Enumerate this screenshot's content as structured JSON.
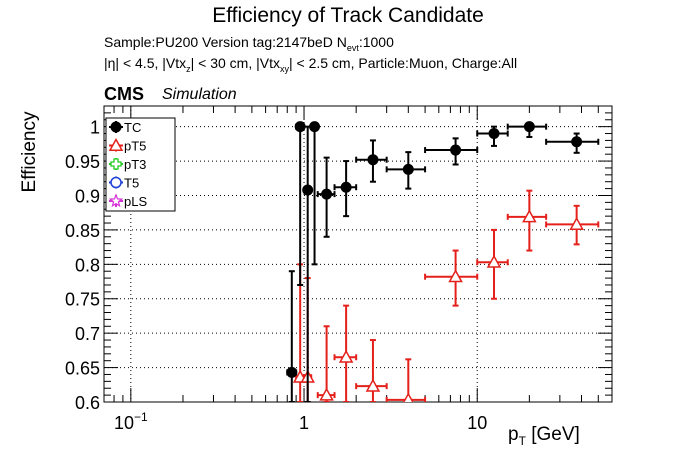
{
  "chart_data": {
    "type": "scatter",
    "title": "Efficiency of Track Candidate",
    "subtitle_line1": "Sample:PU200   Version tag:2147beD  N",
    "subtitle_line1_sub": "evt",
    "subtitle_line1_tail": ":1000",
    "subtitle_line2": "|η| < 4.5, |Vtx",
    "subtitle_line2_sub1": "z",
    "subtitle_line2_mid": "| < 30 cm, |Vtx",
    "subtitle_line2_sub2": "xy",
    "subtitle_line2_tail": "| < 2.5 cm, Particle:Muon, Charge:All",
    "cms_label": "CMS",
    "simulation_label": "Simulation",
    "xlabel": "p",
    "xlabel_sub": "T",
    "xlabel_unit": " [GeV]",
    "ylabel": "Efficiency",
    "x_scale": "log",
    "xlim": [
      0.07,
      60
    ],
    "ylim": [
      0.6,
      1.03
    ],
    "grid": true,
    "legend_position": "top-left",
    "x_ticks": [
      {
        "value": 0.1,
        "label": "10",
        "sup": "−1"
      },
      {
        "value": 1,
        "label": "1",
        "sup": ""
      },
      {
        "value": 10,
        "label": "10",
        "sup": ""
      }
    ],
    "y_ticks": [
      0.6,
      0.65,
      0.7,
      0.75,
      0.8,
      0.85,
      0.9,
      0.95,
      1
    ],
    "y_tick_labels": [
      "0.6",
      "0.65",
      "0.7",
      "0.75",
      "0.8",
      "0.85",
      "0.9",
      "0.95",
      "1"
    ],
    "series": [
      {
        "name": "TC",
        "color": "#000000",
        "marker": "filled-circle",
        "points": [
          {
            "x": 0.85,
            "xlo": 0.8,
            "xhi": 0.9,
            "y": 0.643,
            "ylo": 0.6,
            "yhi": 0.79
          },
          {
            "x": 0.95,
            "xlo": 0.9,
            "xhi": 1.0,
            "y": 1.0,
            "ylo": 0.77,
            "yhi": 1.0
          },
          {
            "x": 1.05,
            "xlo": 1.0,
            "xhi": 1.1,
            "y": 0.908,
            "ylo": 0.6,
            "yhi": 1.0
          },
          {
            "x": 1.15,
            "xlo": 1.1,
            "xhi": 1.2,
            "y": 1.0,
            "ylo": 0.8,
            "yhi": 1.0
          },
          {
            "x": 1.35,
            "xlo": 1.2,
            "xhi": 1.5,
            "y": 0.902,
            "ylo": 0.84,
            "yhi": 0.955
          },
          {
            "x": 1.75,
            "xlo": 1.5,
            "xhi": 2.0,
            "y": 0.912,
            "ylo": 0.87,
            "yhi": 0.95
          },
          {
            "x": 2.5,
            "xlo": 2.0,
            "xhi": 3.0,
            "y": 0.952,
            "ylo": 0.92,
            "yhi": 0.98
          },
          {
            "x": 4.0,
            "xlo": 3.0,
            "xhi": 5.0,
            "y": 0.938,
            "ylo": 0.91,
            "yhi": 0.963
          },
          {
            "x": 7.5,
            "xlo": 5.0,
            "xhi": 10.0,
            "y": 0.966,
            "ylo": 0.945,
            "yhi": 0.983
          },
          {
            "x": 12.5,
            "xlo": 10.0,
            "xhi": 15.0,
            "y": 0.99,
            "ylo": 0.972,
            "yhi": 1.0
          },
          {
            "x": 20.0,
            "xlo": 15.0,
            "xhi": 25.0,
            "y": 1.0,
            "ylo": 0.985,
            "yhi": 1.0
          },
          {
            "x": 37.5,
            "xlo": 25.0,
            "xhi": 50.0,
            "y": 0.978,
            "ylo": 0.962,
            "yhi": 0.99
          }
        ]
      },
      {
        "name": "pT5",
        "color": "#e4201b",
        "marker": "open-triangle",
        "points": [
          {
            "x": 0.95,
            "xlo": 0.9,
            "xhi": 1.0,
            "y": 0.636,
            "ylo": 0.6,
            "yhi": 0.8
          },
          {
            "x": 1.05,
            "xlo": 1.0,
            "xhi": 1.1,
            "y": 0.636,
            "ylo": 0.6,
            "yhi": 0.78
          },
          {
            "x": 1.35,
            "xlo": 1.2,
            "xhi": 1.5,
            "y": 0.61,
            "ylo": 0.6,
            "yhi": 0.71
          },
          {
            "x": 1.75,
            "xlo": 1.5,
            "xhi": 2.0,
            "y": 0.665,
            "ylo": 0.6,
            "yhi": 0.74
          },
          {
            "x": 2.5,
            "xlo": 2.0,
            "xhi": 3.0,
            "y": 0.623,
            "ylo": 0.6,
            "yhi": 0.69
          },
          {
            "x": 4.0,
            "xlo": 3.0,
            "xhi": 5.0,
            "y": 0.603,
            "ylo": 0.6,
            "yhi": 0.662
          },
          {
            "x": 7.5,
            "xlo": 5.0,
            "xhi": 10.0,
            "y": 0.782,
            "ylo": 0.74,
            "yhi": 0.82
          },
          {
            "x": 12.5,
            "xlo": 10.0,
            "xhi": 15.0,
            "y": 0.803,
            "ylo": 0.75,
            "yhi": 0.85
          },
          {
            "x": 20.0,
            "xlo": 15.0,
            "xhi": 25.0,
            "y": 0.869,
            "ylo": 0.82,
            "yhi": 0.907
          },
          {
            "x": 37.5,
            "xlo": 25.0,
            "xhi": 50.0,
            "y": 0.858,
            "ylo": 0.829,
            "yhi": 0.885
          }
        ]
      },
      {
        "name": "pT3",
        "color": "#22cc22",
        "marker": "open-cross",
        "points": []
      },
      {
        "name": "T5",
        "color": "#1f3fd6",
        "marker": "open-circle",
        "points": []
      },
      {
        "name": "pLS",
        "color": "#d633d6",
        "marker": "open-star",
        "points": []
      }
    ]
  }
}
